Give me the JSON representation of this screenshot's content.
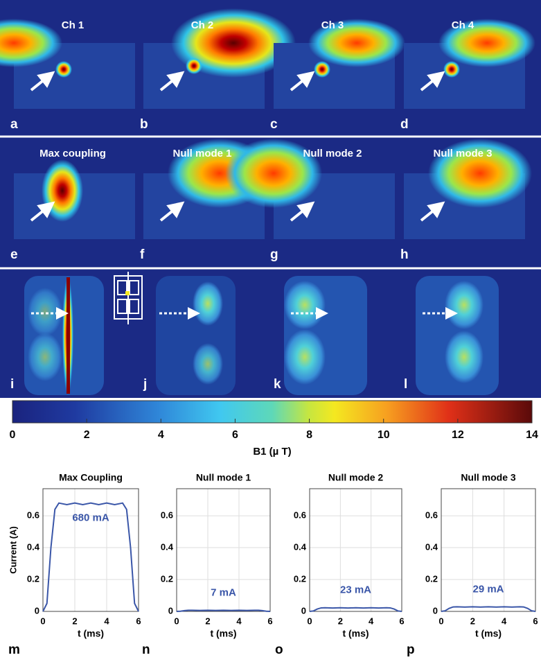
{
  "panels": [
    {
      "title": "Ch 1",
      "letter": "a"
    },
    {
      "title": "Ch 2",
      "letter": "b"
    },
    {
      "title": "Ch 3",
      "letter": "c"
    },
    {
      "title": "Ch 4",
      "letter": "d"
    },
    {
      "title": "Max coupling",
      "letter": "e"
    },
    {
      "title": "Null mode 1",
      "letter": "f"
    },
    {
      "title": "Null mode 2",
      "letter": "g"
    },
    {
      "title": "Null mode 3",
      "letter": "h"
    }
  ],
  "map_letters": [
    "i",
    "j",
    "k",
    "l"
  ],
  "colorbar": {
    "ticks": [
      0,
      2,
      4,
      6,
      8,
      10,
      12,
      14
    ],
    "label": "B1 (µ T)"
  },
  "chart_data": [
    {
      "type": "line",
      "title": "Max Coupling",
      "letter": "m",
      "xlabel": "t (ms)",
      "ylabel": "Current (A)",
      "annotation": "680 mA",
      "x": [
        0,
        0.25,
        0.5,
        0.75,
        1,
        1.5,
        2,
        2.5,
        3,
        3.5,
        4,
        4.5,
        5,
        5.25,
        5.5,
        5.75,
        6
      ],
      "series": [
        {
          "color": "#3a56a8",
          "values": [
            0,
            0.05,
            0.4,
            0.64,
            0.68,
            0.67,
            0.68,
            0.67,
            0.68,
            0.67,
            0.68,
            0.67,
            0.68,
            0.64,
            0.4,
            0.05,
            0
          ]
        }
      ],
      "xlim": [
        0,
        6
      ],
      "ylim": [
        0,
        0.77
      ],
      "xticks": [
        0,
        2,
        4,
        6
      ],
      "yticks": [
        0,
        0.2,
        0.4,
        0.6
      ],
      "grid": true
    },
    {
      "type": "line",
      "title": "Null mode 1",
      "letter": "n",
      "xlabel": "t (ms)",
      "annotation": "7 mA",
      "x": [
        0,
        0.25,
        0.5,
        0.75,
        1,
        1.5,
        2,
        2.5,
        3,
        3.5,
        4,
        4.5,
        5,
        5.25,
        5.5,
        5.75,
        6
      ],
      "series": [
        {
          "color": "#3a56a8",
          "values": [
            0,
            0.001,
            0.005,
            0.007,
            0.007,
            0.006,
            0.007,
            0.006,
            0.007,
            0.006,
            0.007,
            0.006,
            0.007,
            0.007,
            0.005,
            0.001,
            0
          ]
        }
      ],
      "xlim": [
        0,
        6
      ],
      "ylim": [
        0,
        0.77
      ],
      "xticks": [
        0,
        2,
        4,
        6
      ],
      "yticks": [
        0,
        0.2,
        0.4,
        0.6
      ],
      "grid": true
    },
    {
      "type": "line",
      "title": "Null mode 2",
      "letter": "o",
      "xlabel": "t (ms)",
      "annotation": "23 mA",
      "x": [
        0,
        0.25,
        0.5,
        0.75,
        1,
        1.5,
        2,
        2.5,
        3,
        3.5,
        4,
        4.5,
        5,
        5.25,
        5.5,
        5.75,
        6
      ],
      "series": [
        {
          "color": "#3a56a8",
          "values": [
            0,
            0.003,
            0.015,
            0.022,
            0.023,
            0.021,
            0.023,
            0.021,
            0.023,
            0.021,
            0.023,
            0.021,
            0.023,
            0.022,
            0.015,
            0.003,
            0
          ]
        }
      ],
      "xlim": [
        0,
        6
      ],
      "ylim": [
        0,
        0.77
      ],
      "xticks": [
        0,
        2,
        4,
        6
      ],
      "yticks": [
        0,
        0.2,
        0.4,
        0.6
      ],
      "grid": true
    },
    {
      "type": "line",
      "title": "Null mode 3",
      "letter": "p",
      "xlabel": "t (ms)",
      "annotation": "29 mA",
      "x": [
        0,
        0.25,
        0.5,
        0.75,
        1,
        1.5,
        2,
        2.5,
        3,
        3.5,
        4,
        4.5,
        5,
        5.25,
        5.5,
        5.75,
        6
      ],
      "series": [
        {
          "color": "#3a56a8",
          "values": [
            0,
            0.004,
            0.019,
            0.028,
            0.029,
            0.027,
            0.029,
            0.027,
            0.029,
            0.027,
            0.029,
            0.027,
            0.029,
            0.028,
            0.019,
            0.004,
            0
          ]
        }
      ],
      "xlim": [
        0,
        6
      ],
      "ylim": [
        0,
        0.77
      ],
      "xticks": [
        0,
        2,
        4,
        6
      ],
      "yticks": [
        0,
        0.2,
        0.4,
        0.6
      ],
      "grid": true
    }
  ]
}
